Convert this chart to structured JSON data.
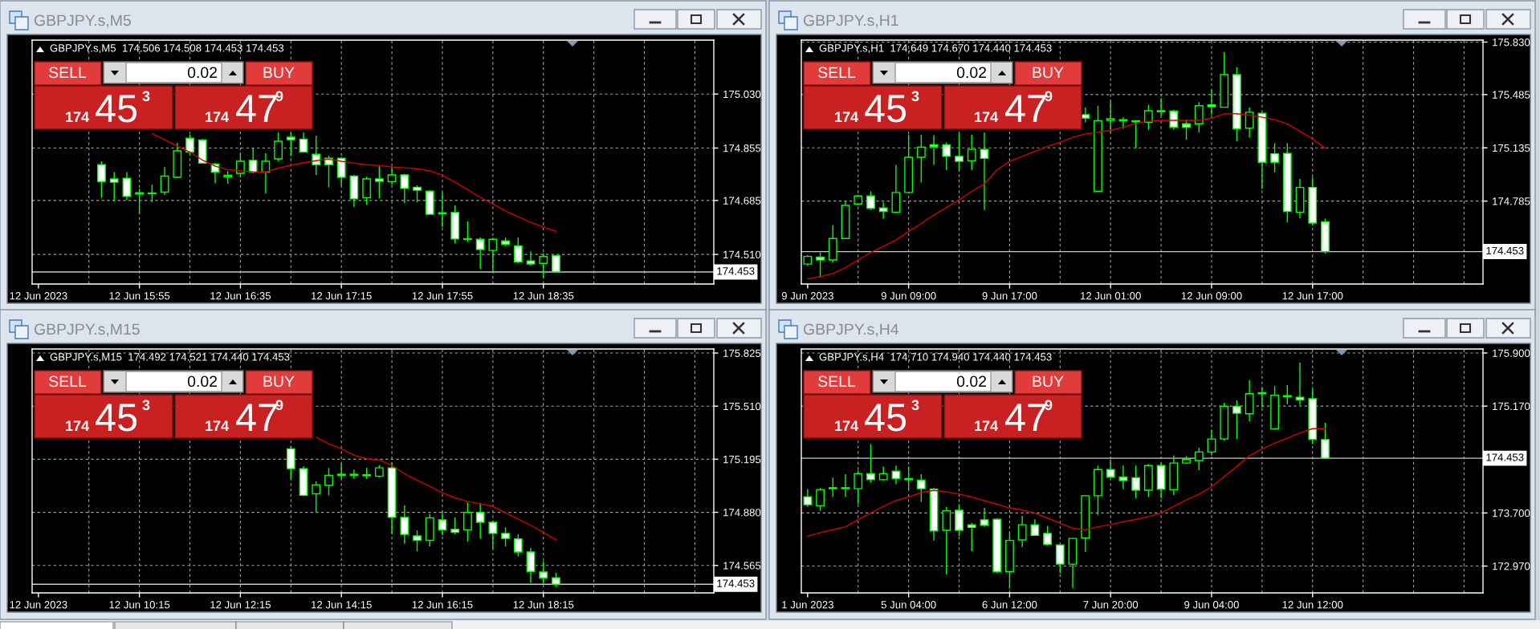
{
  "chart_data": [
    {
      "type": "candlestick",
      "title": "GBPJPY.s,M5",
      "subtitle": "GBPJPY.s,M5  174.506 174.508 174.453 174.453",
      "categories": [
        "12 Jun 2023",
        null,
        null,
        null,
        null,
        null,
        null,
        null,
        "12 Jun 15:55",
        null,
        null,
        null,
        null,
        null,
        null,
        null,
        "12 Jun 16:35",
        null,
        null,
        null,
        null,
        null,
        null,
        null,
        "12 Jun 17:15",
        null,
        null,
        null,
        null,
        null,
        null,
        null,
        "12 Jun 17:55",
        null,
        null,
        null,
        null,
        null,
        null,
        null,
        "12 Jun 18:35",
        null,
        null,
        null,
        null,
        null,
        null,
        null,
        null,
        null,
        null,
        null,
        null,
        null
      ],
      "ohlc": [
        null,
        null,
        null,
        null,
        null,
        [
          174.801,
          174.812,
          174.694,
          174.746
        ],
        [
          174.755,
          174.777,
          174.682,
          174.744
        ],
        [
          174.757,
          174.777,
          174.686,
          174.698
        ],
        [
          174.706,
          174.723,
          174.643,
          174.71
        ],
        [
          174.707,
          174.736,
          174.679,
          174.709
        ],
        [
          174.712,
          174.793,
          174.703,
          174.764
        ],
        [
          174.76,
          174.871,
          174.757,
          174.846
        ],
        [
          174.887,
          174.898,
          174.833,
          174.842
        ],
        [
          174.881,
          174.884,
          174.806,
          174.806
        ],
        [
          174.803,
          174.806,
          174.741,
          174.777
        ],
        [
          174.762,
          174.78,
          174.739,
          174.767
        ],
        [
          174.773,
          174.841,
          174.76,
          174.812
        ],
        [
          174.815,
          174.854,
          174.773,
          174.777
        ],
        [
          174.777,
          174.838,
          174.708,
          174.812
        ],
        [
          174.82,
          174.906,
          174.812,
          174.877
        ],
        [
          174.89,
          174.905,
          174.829,
          174.882
        ],
        [
          174.884,
          174.906,
          174.841,
          174.842
        ],
        [
          174.835,
          174.895,
          174.768,
          174.801
        ],
        [
          174.822,
          174.83,
          174.728,
          174.801
        ],
        [
          174.822,
          174.826,
          174.733,
          174.76
        ],
        [
          174.764,
          174.767,
          174.663,
          174.69
        ],
        [
          174.694,
          174.762,
          174.671,
          174.755
        ],
        [
          174.755,
          174.796,
          174.692,
          174.747
        ],
        [
          174.746,
          174.793,
          174.736,
          174.768
        ],
        [
          174.768,
          174.771,
          174.676,
          174.724
        ],
        [
          174.728,
          174.734,
          174.679,
          174.718
        ],
        [
          174.715,
          174.718,
          174.64,
          174.64
        ],
        [
          174.642,
          174.711,
          174.598,
          174.645
        ],
        [
          174.646,
          174.669,
          174.546,
          174.56
        ],
        [
          174.559,
          174.617,
          174.552,
          174.561
        ],
        [
          174.559,
          174.565,
          174.463,
          174.526
        ],
        [
          174.523,
          174.564,
          174.452,
          174.559
        ],
        [
          174.554,
          174.565,
          174.536,
          174.543
        ],
        [
          174.538,
          174.565,
          174.481,
          174.486
        ],
        [
          174.489,
          174.52,
          174.474,
          174.479
        ],
        [
          174.481,
          174.513,
          174.435,
          174.503
        ],
        [
          174.506,
          174.508,
          174.453,
          174.453
        ],
        null,
        null,
        null,
        null,
        null,
        null,
        null,
        null,
        null,
        null,
        null,
        null
      ],
      "series": [
        {
          "type": "line",
          "color": "#d40000",
          "values": [
            null,
            null,
            null,
            null,
            null,
            null,
            null,
            null,
            null,
            174.902,
            174.882,
            174.861,
            174.842,
            174.816,
            174.796,
            174.785,
            174.781,
            174.778,
            174.777,
            174.79,
            174.799,
            174.807,
            174.814,
            174.819,
            174.812,
            174.806,
            174.801,
            174.798,
            174.794,
            174.791,
            174.788,
            174.781,
            174.767,
            174.744,
            174.72,
            174.695,
            174.674,
            174.651,
            174.632,
            174.614,
            174.599,
            174.585,
            null,
            null,
            null,
            null,
            null,
            null,
            null,
            null,
            null,
            null,
            null,
            null
          ]
        }
      ],
      "ylim": [
        174.414,
        175.205
      ],
      "yticks": [
        {
          "value": 174.51,
          "label": "174.510"
        },
        174.685,
        174.855,
        {
          "value": 175.03,
          "label": "175.030"
        }
      ],
      "ref_lines": [
        {
          "axis": "y",
          "value": 174.453,
          "label": "174.453",
          "color": "#c8c8c8"
        }
      ],
      "grid": true,
      "annotations": [
        "SELL",
        "0.02",
        "BUY",
        "174",
        "45",
        "3",
        "174",
        "47",
        "9"
      ]
    },
    {
      "type": "candlestick",
      "title": "GBPJPY.s,H1",
      "subtitle": "GBPJPY.s,H1  174.649 174.670 174.440 174.453",
      "categories": [
        "9 Jun 2023",
        null,
        null,
        null,
        null,
        null,
        null,
        null,
        "9 Jun 09:00",
        null,
        null,
        null,
        null,
        null,
        null,
        null,
        "9 Jun 17:00",
        null,
        null,
        null,
        null,
        null,
        null,
        null,
        "12 Jun 01:00",
        null,
        null,
        null,
        null,
        null,
        null,
        null,
        "12 Jun 09:00",
        null,
        null,
        null,
        null,
        null,
        null,
        null,
        "12 Jun 17:00",
        null,
        null,
        null,
        null,
        null,
        null,
        null,
        null,
        null,
        null,
        null,
        null,
        null
      ],
      "ohlc": [
        [
          174.371,
          174.43,
          174.36,
          174.421
        ],
        [
          174.417,
          174.447,
          174.282,
          174.398
        ],
        [
          174.398,
          174.628,
          174.381,
          174.539
        ],
        [
          174.539,
          174.783,
          174.536,
          174.757
        ],
        [
          174.766,
          174.826,
          174.76,
          174.819
        ],
        [
          174.819,
          174.849,
          174.727,
          174.737
        ],
        [
          174.74,
          174.776,
          174.668,
          174.717
        ],
        [
          174.711,
          175.023,
          174.707,
          174.842
        ],
        [
          174.842,
          175.221,
          174.836,
          175.073
        ],
        [
          175.073,
          175.221,
          174.908,
          175.139
        ],
        [
          175.155,
          175.218,
          175.023,
          175.142
        ],
        [
          175.155,
          175.171,
          174.99,
          175.079
        ],
        [
          175.079,
          175.237,
          174.99,
          175.046
        ],
        [
          175.05,
          175.221,
          174.99,
          175.125
        ],
        [
          175.125,
          175.237,
          174.727,
          175.066
        ],
        null,
        null,
        null,
        null,
        null,
        null,
        null,
        [
          175.353,
          175.402,
          175.303,
          175.33
        ],
        [
          174.849,
          175.412,
          174.849,
          175.313
        ],
        [
          175.316,
          175.441,
          175.237,
          175.326
        ],
        [
          175.313,
          175.336,
          175.26,
          175.32
        ],
        [
          175.306,
          175.313,
          175.132,
          175.313
        ],
        [
          175.303,
          175.418,
          175.254,
          175.379
        ],
        [
          175.372,
          175.461,
          175.346,
          175.379
        ],
        [
          175.376,
          175.385,
          175.254,
          175.27
        ],
        [
          175.293,
          175.32,
          175.188,
          175.27
        ],
        [
          175.293,
          175.435,
          175.237,
          175.412
        ],
        [
          175.418,
          175.517,
          175.353,
          175.405
        ],
        [
          175.402,
          175.764,
          175.402,
          175.616
        ],
        [
          175.616,
          175.665,
          175.178,
          175.26
        ],
        [
          175.264,
          175.402,
          175.204,
          175.369
        ],
        [
          175.362,
          175.369,
          174.865,
          175.04
        ],
        [
          175.096,
          175.165,
          174.974,
          175.04
        ],
        [
          175.099,
          175.165,
          174.645,
          174.717
        ],
        [
          174.711,
          174.931,
          174.671,
          174.875
        ],
        [
          174.875,
          174.941,
          174.628,
          174.641
        ],
        [
          174.649,
          174.67,
          174.44,
          174.453
        ],
        null,
        null,
        null,
        null,
        null,
        null,
        null,
        null,
        null,
        null,
        null,
        null
      ],
      "series": [
        {
          "type": "line",
          "color": "#d40000",
          "values": [
            174.273,
            174.289,
            174.309,
            174.348,
            174.398,
            174.447,
            174.487,
            174.529,
            174.585,
            174.638,
            174.694,
            174.743,
            174.793,
            174.849,
            174.898,
            174.99,
            175.046,
            175.079,
            175.112,
            175.145,
            175.171,
            175.204,
            175.227,
            175.237,
            175.25,
            175.27,
            175.297,
            175.31,
            175.316,
            175.316,
            175.316,
            175.316,
            175.33,
            175.359,
            175.359,
            175.349,
            175.336,
            175.32,
            175.293,
            175.244,
            175.194,
            175.132,
            null,
            null,
            null,
            null,
            null,
            null,
            null,
            null,
            null,
            null,
            null,
            null
          ]
        }
      ],
      "ylim": [
        174.24,
        175.843
      ],
      "yticks": [
        174.785,
        175.135,
        175.485,
        {
          "value": 175.83,
          "label": "175.830"
        }
      ],
      "ref_lines": [
        {
          "axis": "y",
          "value": 174.453,
          "label": "174.453",
          "color": "#c8c8c8"
        }
      ],
      "grid": true,
      "annotations": [
        "SELL",
        "0.02",
        "BUY",
        "174",
        "45",
        "3",
        "174",
        "47",
        "9"
      ]
    },
    {
      "type": "candlestick",
      "title": "GBPJPY.s,M15",
      "subtitle": "GBPJPY.s,M15  174.492 174.521 174.440 174.453",
      "categories": [
        "12 Jun 2023",
        null,
        null,
        null,
        null,
        null,
        null,
        null,
        "12 Jun 10:15",
        null,
        null,
        null,
        null,
        null,
        null,
        null,
        "12 Jun 12:15",
        null,
        null,
        null,
        null,
        null,
        null,
        null,
        "12 Jun 14:15",
        null,
        null,
        null,
        null,
        null,
        null,
        null,
        "12 Jun 16:15",
        null,
        null,
        null,
        null,
        null,
        null,
        null,
        "12 Jun 18:15",
        null,
        null,
        null,
        null,
        null,
        null,
        null,
        null,
        null,
        null,
        null,
        null,
        null
      ],
      "ohlc": [
        null,
        null,
        null,
        null,
        null,
        null,
        null,
        null,
        null,
        null,
        null,
        null,
        null,
        null,
        null,
        null,
        null,
        null,
        null,
        null,
        [
          175.257,
          175.272,
          175.079,
          175.139
        ],
        [
          175.139,
          175.153,
          174.975,
          174.981
        ],
        [
          174.99,
          175.064,
          174.88,
          175.043
        ],
        [
          175.04,
          175.144,
          174.981,
          175.1
        ],
        [
          175.1,
          175.171,
          175.079,
          175.106
        ],
        [
          175.1,
          175.133,
          175.079,
          175.106
        ],
        [
          175.097,
          175.144,
          175.079,
          175.103
        ],
        [
          175.094,
          175.159,
          175.088,
          175.144
        ],
        [
          175.144,
          175.174,
          174.752,
          174.85
        ],
        [
          174.85,
          174.922,
          174.693,
          174.749
        ],
        [
          174.74,
          174.773,
          174.648,
          174.714
        ],
        [
          174.714,
          174.871,
          174.678,
          174.847
        ],
        [
          174.835,
          174.886,
          174.743,
          174.776
        ],
        [
          174.779,
          174.85,
          174.749,
          174.761
        ],
        [
          174.776,
          174.939,
          174.708,
          174.88
        ],
        [
          174.88,
          174.936,
          174.723,
          174.821
        ],
        [
          174.821,
          174.832,
          174.663,
          174.755
        ],
        [
          174.755,
          174.791,
          174.678,
          174.725
        ],
        [
          174.722,
          174.749,
          174.618,
          174.645
        ],
        [
          174.645,
          174.669,
          174.461,
          174.529
        ],
        [
          174.526,
          174.589,
          174.455,
          174.491
        ],
        [
          174.492,
          174.521,
          174.44,
          174.453
        ],
        null,
        null,
        null,
        null,
        null,
        null,
        null,
        null,
        null,
        null,
        null,
        null
      ],
      "series": [
        {
          "type": "line",
          "color": "#d40000",
          "values": [
            null,
            null,
            null,
            null,
            null,
            null,
            null,
            null,
            null,
            null,
            null,
            null,
            null,
            null,
            null,
            null,
            null,
            null,
            null,
            null,
            null,
            null,
            175.326,
            175.287,
            175.257,
            175.219,
            175.198,
            175.189,
            175.159,
            175.109,
            175.07,
            175.035,
            174.996,
            174.966,
            174.945,
            174.93,
            174.916,
            174.877,
            174.841,
            174.803,
            174.761,
            174.717,
            null,
            null,
            null,
            null,
            null,
            null,
            null,
            null,
            null,
            null,
            null,
            null
          ]
        }
      ],
      "ylim": [
        174.402,
        175.849
      ],
      "yticks": [
        174.565,
        {
          "value": 174.88,
          "label": "174.880"
        },
        175.195,
        {
          "value": 175.51,
          "label": "175.510"
        },
        175.825
      ],
      "ref_lines": [
        {
          "axis": "y",
          "value": 174.453,
          "label": "174.453",
          "color": "#c8c8c8"
        }
      ],
      "grid": true,
      "annotations": [
        "SELL",
        "0.02",
        "BUY",
        "174",
        "45",
        "3",
        "174",
        "47",
        "9"
      ]
    },
    {
      "type": "candlestick",
      "title": "GBPJPY.s,H4",
      "subtitle": "GBPJPY.s,H4  174.710 174.940 174.440 174.453",
      "categories": [
        "1 Jun 2023",
        null,
        null,
        null,
        null,
        null,
        null,
        null,
        "5 Jun 04:00",
        null,
        null,
        null,
        null,
        null,
        null,
        null,
        "6 Jun 12:00",
        null,
        null,
        null,
        null,
        null,
        null,
        null,
        "7 Jun 20:00",
        null,
        null,
        null,
        null,
        null,
        null,
        null,
        "9 Jun 04:00",
        null,
        null,
        null,
        null,
        null,
        null,
        null,
        "12 Jun 12:00",
        null,
        null,
        null,
        null,
        null,
        null,
        null,
        null,
        null,
        null,
        null,
        null,
        null
      ],
      "ohlc": [
        [
          173.923,
          174.027,
          173.785,
          173.813
        ],
        [
          173.799,
          174.048,
          173.73,
          174.02
        ],
        [
          174.034,
          174.186,
          173.923,
          174.048
        ],
        [
          174.034,
          174.234,
          173.923,
          174.048
        ],
        [
          174.034,
          174.283,
          173.82,
          174.241
        ],
        [
          174.241,
          174.649,
          174.117,
          174.158
        ],
        [
          174.158,
          174.338,
          174.144,
          174.241
        ],
        [
          174.276,
          174.352,
          174.096,
          174.172
        ],
        [
          174.172,
          174.338,
          174.02,
          174.158
        ],
        [
          174.151,
          174.234,
          173.854,
          174.034
        ],
        [
          174.027,
          174.048,
          173.322,
          173.454
        ],
        [
          173.461,
          173.785,
          172.852,
          173.73
        ],
        [
          173.737,
          173.82,
          173.384,
          173.461
        ],
        [
          173.537,
          173.564,
          173.177,
          173.502
        ],
        [
          173.606,
          173.771,
          173.509,
          173.53
        ],
        [
          173.613,
          173.626,
          172.873,
          172.894
        ],
        [
          172.894,
          173.433,
          172.659,
          173.322
        ],
        [
          173.329,
          173.661,
          173.232,
          173.537
        ],
        [
          173.537,
          173.613,
          173.384,
          173.391
        ],
        [
          173.419,
          173.523,
          173.253,
          173.267
        ],
        [
          173.26,
          173.267,
          172.873,
          172.997
        ],
        [
          172.997,
          173.357,
          172.666,
          173.35
        ],
        [
          173.357,
          173.944,
          173.163,
          173.937
        ],
        [
          173.937,
          174.352,
          173.668,
          174.297
        ],
        [
          174.297,
          174.435,
          174.186,
          174.193
        ],
        [
          174.193,
          174.352,
          174.027,
          174.145
        ],
        [
          174.186,
          174.352,
          173.903,
          174.013
        ],
        [
          174.013,
          174.373,
          173.923,
          174.352
        ],
        [
          174.352,
          174.386,
          173.903,
          174.027
        ],
        [
          174.02,
          174.49,
          173.944,
          174.387
        ],
        [
          174.387,
          174.483,
          174.373,
          174.435
        ],
        [
          174.421,
          174.594,
          174.29,
          174.539
        ],
        [
          174.539,
          174.843,
          174.49,
          174.718
        ],
        [
          174.718,
          175.216,
          174.698,
          175.167
        ],
        [
          175.167,
          175.25,
          174.718,
          175.071
        ],
        [
          175.064,
          175.527,
          174.96,
          175.34
        ],
        [
          175.34,
          175.423,
          175.147,
          175.354
        ],
        [
          174.856,
          175.444,
          174.856,
          175.319
        ],
        [
          175.299,
          175.458,
          175.195,
          175.313
        ],
        [
          175.292,
          175.769,
          175.188,
          175.257
        ],
        [
          175.271,
          175.409,
          174.649,
          174.711
        ],
        [
          174.71,
          174.94,
          174.44,
          174.453
        ],
        null,
        null,
        null,
        null,
        null,
        null,
        null,
        null,
        null,
        null,
        null,
        null
      ],
      "series": [
        {
          "type": "line",
          "color": "#d40000",
          "values": [
            173.38,
            173.43,
            173.47,
            173.51,
            173.61,
            173.7,
            173.79,
            173.87,
            173.92,
            173.98,
            174.01,
            173.99,
            173.96,
            173.92,
            173.87,
            173.82,
            173.77,
            173.74,
            173.7,
            173.63,
            173.56,
            173.49,
            173.47,
            173.51,
            173.54,
            173.58,
            173.61,
            173.65,
            173.7,
            173.79,
            173.88,
            173.96,
            174.06,
            174.2,
            174.34,
            174.49,
            174.58,
            174.66,
            174.73,
            174.8,
            174.86,
            174.86,
            null,
            null,
            null,
            null,
            null,
            null,
            null,
            null,
            null,
            null,
            null,
            null
          ]
        }
      ],
      "ylim": [
        172.601,
        175.955
      ],
      "yticks": [
        {
          "value": 172.97,
          "label": "172.970"
        },
        {
          "value": 173.7,
          "label": "173.700"
        },
        {
          "value": 175.17,
          "label": "175.170"
        },
        {
          "value": 175.9,
          "label": "175.900"
        }
      ],
      "ref_lines": [
        {
          "axis": "y",
          "value": 174.453,
          "label": "174.453",
          "color": "#c8c8c8"
        }
      ],
      "grid": true,
      "annotations": [
        "SELL",
        "0.02",
        "BUY",
        "174",
        "45",
        "3",
        "174",
        "47",
        "9"
      ]
    }
  ]
}
